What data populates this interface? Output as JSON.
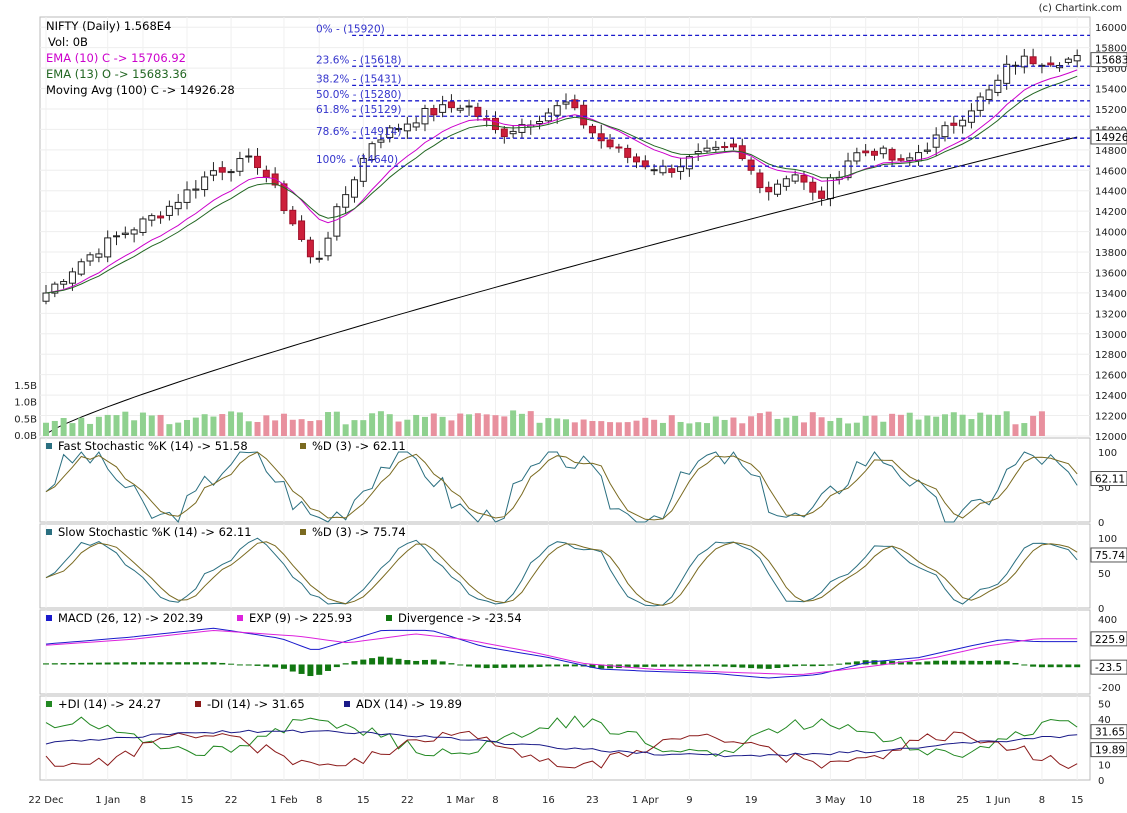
{
  "chart_data": {
    "type": "candlestick",
    "copyright": "(c) Chartink.com",
    "x_tick_labels": [
      "22 Dec",
      "1 Jan",
      "8",
      "15",
      "22",
      "1 Feb",
      "8",
      "15",
      "22",
      "1 Mar",
      "8",
      "16",
      "23",
      "1 Apr",
      "9",
      "19",
      "3 May",
      "10",
      "18",
      "25",
      "1 Jun",
      "8",
      "15"
    ],
    "price_panel": {
      "title": "NIFTY (Daily) 1.568E4",
      "volume_label": "Vol: 0B",
      "legend": [
        {
          "text": "EMA (10) C -> 15706.92",
          "color": "#cc00cc"
        },
        {
          "text": "EMA (13) O -> 15683.36",
          "color": "#226622"
        },
        {
          "text": "Moving Avg (100) C -> 14926.28",
          "color": "#000000"
        }
      ],
      "y_ticks": [
        12000,
        12200,
        12400,
        12600,
        12800,
        13000,
        13200,
        13400,
        13600,
        13800,
        14000,
        14200,
        14400,
        14600,
        14800,
        15000,
        15200,
        15400,
        15600,
        15800,
        16000
      ],
      "y_range": [
        12000,
        16100
      ],
      "last_value_badges": [
        "15683",
        "14926"
      ],
      "fibonacci": [
        {
          "label": "0% - (15920)",
          "value": 15920
        },
        {
          "label": "23.6% - (15618)",
          "value": 15618
        },
        {
          "label": "38.2% - (15431)",
          "value": 15431
        },
        {
          "label": "50.0% - (15280)",
          "value": 15280
        },
        {
          "label": "61.8% - (15129)",
          "value": 15129
        },
        {
          "label": "78.6% - (14914)",
          "value": 14914
        },
        {
          "label": "100% - (14640)",
          "value": 14640
        }
      ],
      "volume_ticks": [
        "0.0B",
        "0.5B",
        "1.0B",
        "1.5B"
      ]
    },
    "fast_stochastic": {
      "legend": [
        {
          "text": "Fast Stochastic %K (14) -> 51.58",
          "color": "#2a6f80"
        },
        {
          "text": "%D (3) -> 62.11",
          "color": "#7a6a20"
        }
      ],
      "y_ticks": [
        "0",
        "50",
        "100"
      ],
      "badge": "62.11"
    },
    "slow_stochastic": {
      "legend": [
        {
          "text": "Slow Stochastic %K (14) -> 62.11",
          "color": "#2a6f80"
        },
        {
          "text": "%D (3) -> 75.74",
          "color": "#7a6a20"
        }
      ],
      "y_ticks": [
        "0",
        "50",
        "100"
      ],
      "badge": "75.74"
    },
    "macd": {
      "legend": [
        {
          "text": "MACD (26, 12) -> 202.39",
          "color": "#1a1acc"
        },
        {
          "text": "EXP (9) -> 225.93",
          "color": "#dd22dd"
        },
        {
          "text": "Divergence -> -23.54",
          "color": "#117711"
        }
      ],
      "y_ticks": [
        "-200",
        "0",
        "200",
        "400"
      ],
      "badges": [
        "225.9",
        "-23.5"
      ]
    },
    "adx": {
      "legend": [
        {
          "text": "+DI (14) -> 24.27",
          "color": "#228822"
        },
        {
          "text": "-DI (14) -> 31.65",
          "color": "#8b1a1a"
        },
        {
          "text": "ADX (14) -> 19.89",
          "color": "#1a1a88"
        }
      ],
      "y_ticks": [
        "0",
        "10",
        "20",
        "30",
        "40",
        "50"
      ],
      "badges": [
        "31.65",
        "19.89"
      ]
    }
  }
}
